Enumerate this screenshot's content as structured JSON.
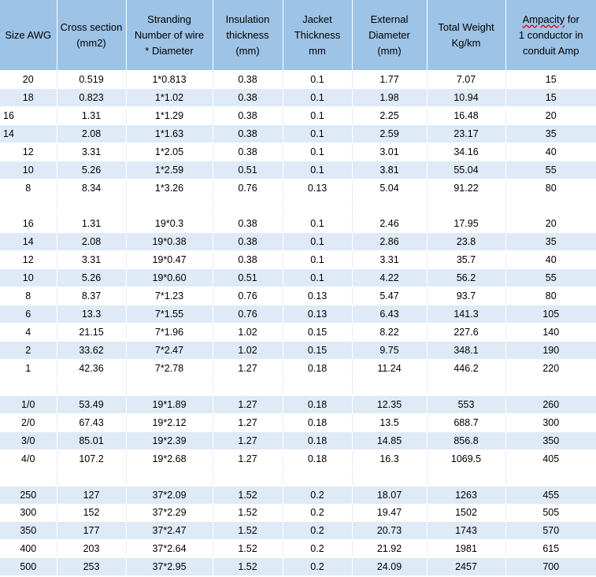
{
  "headers": [
    {
      "lines": [
        "Size AWG"
      ]
    },
    {
      "lines": [
        "Cross section",
        "(mm2)"
      ]
    },
    {
      "lines": [
        "Stranding",
        "Number of wire",
        "* Diameter"
      ]
    },
    {
      "lines": [
        "Insulation",
        "thickness",
        "(mm)"
      ]
    },
    {
      "lines": [
        "Jacket",
        "Thickness",
        "mm"
      ]
    },
    {
      "lines": [
        "External",
        "Diameter",
        "(mm)"
      ]
    },
    {
      "lines": [
        "Total Weight",
        "Kg/km"
      ]
    },
    {
      "lines": [
        "Ampacity for",
        "1 conductor in",
        "conduit Amp"
      ]
    }
  ],
  "rows": [
    [
      "20",
      "0.519",
      "1*0.813",
      "0.38",
      "0.1",
      "1.77",
      "7.07",
      "15"
    ],
    [
      "18",
      "0.823",
      "1*1.02",
      "0.38",
      "0.1",
      "1.98",
      "10.94",
      "15"
    ],
    [
      "16",
      "1.31",
      "1*1.29",
      "0.38",
      "0.1",
      "2.25",
      "16.48",
      "20"
    ],
    [
      "14",
      "2.08",
      "1*1.63",
      "0.38",
      "0.1",
      "2.59",
      "23.17",
      "35"
    ],
    [
      "12",
      "3.31",
      "1*2.05",
      "0.38",
      "0.1",
      "3.01",
      "34.16",
      "40"
    ],
    [
      "10",
      "5.26",
      "1*2.59",
      "0.51",
      "0.1",
      "3.81",
      "55.04",
      "55"
    ],
    [
      "8",
      "8.34",
      "1*3.26",
      "0.76",
      "0.13",
      "5.04",
      "91.22",
      "80"
    ],
    [
      "",
      "",
      "",
      "",
      "",
      "",
      "",
      ""
    ],
    [
      "16",
      "1.31",
      "19*0.3",
      "0.38",
      "0.1",
      "2.46",
      "17.95",
      "20"
    ],
    [
      "14",
      "2.08",
      "19*0.38",
      "0.38",
      "0.1",
      "2.86",
      "23.8",
      "35"
    ],
    [
      "12",
      "3.31",
      "19*0.47",
      "0.38",
      "0.1",
      "3.31",
      "35.7",
      "40"
    ],
    [
      "10",
      "5.26",
      "19*0.60",
      "0.51",
      "0.1",
      "4.22",
      "56.2",
      "55"
    ],
    [
      "8",
      "8.37",
      "7*1.23",
      "0.76",
      "0.13",
      "5.47",
      "93.7",
      "80"
    ],
    [
      "6",
      "13.3",
      "7*1.55",
      "0.76",
      "0.13",
      "6.43",
      "141.3",
      "105"
    ],
    [
      "4",
      "21.15",
      "7*1.96",
      "1.02",
      "0.15",
      "8.22",
      "227.6",
      "140"
    ],
    [
      "2",
      "33.62",
      "7*2.47",
      "1.02",
      "0.15",
      "9.75",
      "348.1",
      "190"
    ],
    [
      "1",
      "42.36",
      "7*2.78",
      "1.27",
      "0.18",
      "11.24",
      "446.2",
      "220"
    ],
    [
      "",
      "",
      "",
      "",
      "",
      "",
      "",
      ""
    ],
    [
      "1/0",
      "53.49",
      "19*1.89",
      "1.27",
      "0.18",
      "12.35",
      "553",
      "260"
    ],
    [
      "2/0",
      "67.43",
      "19*2.12",
      "1.27",
      "0.18",
      "13.5",
      "688.7",
      "300"
    ],
    [
      "3/0",
      "85.01",
      "19*2.39",
      "1.27",
      "0.18",
      "14.85",
      "856.8",
      "350"
    ],
    [
      "4/0",
      "107.2",
      "19*2.68",
      "1.27",
      "0.18",
      "16.3",
      "1069.5",
      "405"
    ],
    [
      "",
      "",
      "",
      "",
      "",
      "",
      "",
      ""
    ],
    [
      "250",
      "127",
      "37*2.09",
      "1.52",
      "0.2",
      "18.07",
      "1263",
      "455"
    ],
    [
      "300",
      "152",
      "37*2.29",
      "1.52",
      "0.2",
      "19.47",
      "1502",
      "505"
    ],
    [
      "350",
      "177",
      "37*2.47",
      "1.52",
      "0.2",
      "20.73",
      "1743",
      "570"
    ],
    [
      "400",
      "203",
      "37*2.64",
      "1.52",
      "0.2",
      "21.92",
      "1981",
      "615"
    ],
    [
      "500",
      "253",
      "37*2.95",
      "1.52",
      "0.2",
      "24.09",
      "2457",
      "700"
    ]
  ],
  "row_styles": [
    "plain",
    "alt",
    "plain",
    "alt",
    "plain",
    "alt",
    "plain",
    "plain",
    "plain",
    "alt",
    "plain",
    "alt",
    "plain",
    "alt",
    "plain",
    "alt",
    "plain",
    "plain",
    "alt",
    "plain",
    "alt",
    "plain",
    "plain",
    "alt",
    "plain",
    "alt",
    "plain",
    "alt"
  ],
  "left_aligned_first_cell_rows": [
    2,
    3
  ],
  "colors": {
    "header_bg": "#9dc3e6",
    "alt_row_bg": "#deeaf6",
    "plain_row_bg": "#ffffff"
  }
}
